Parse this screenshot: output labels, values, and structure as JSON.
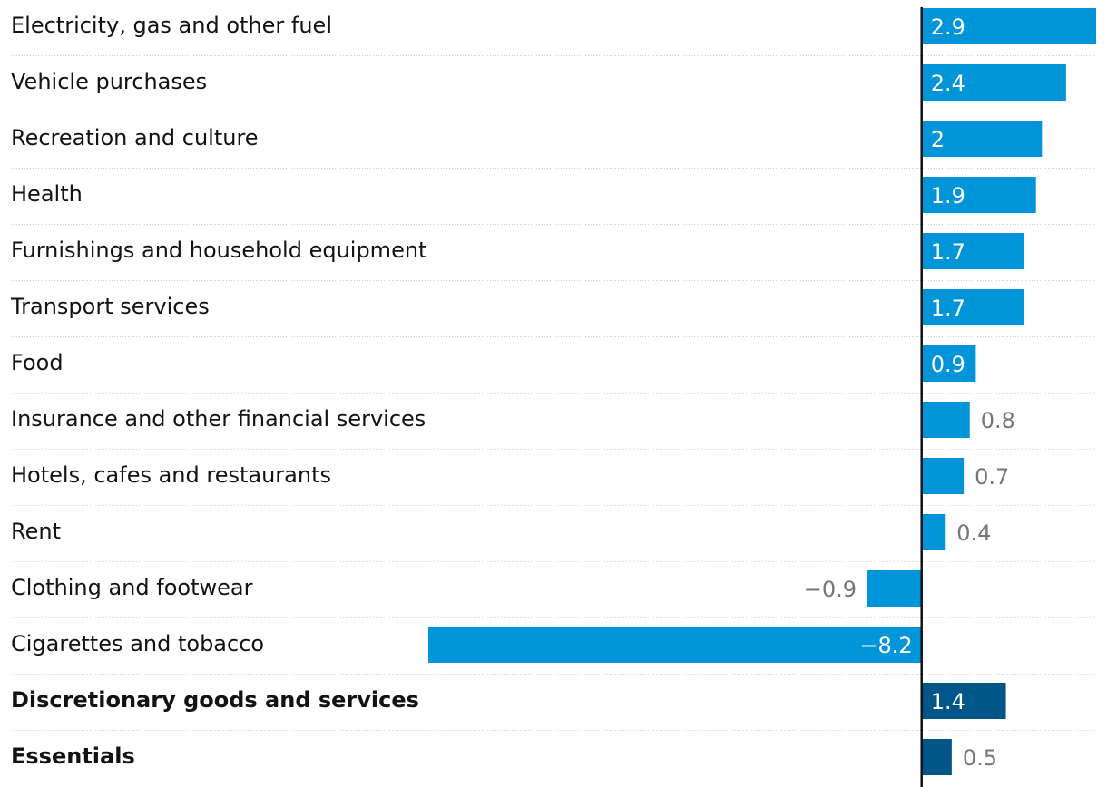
{
  "chart_data": {
    "type": "bar",
    "orientation": "horizontal",
    "categories": [
      "Electricity, gas and other fuel",
      "Vehicle purchases",
      "Recreation and culture",
      "Health",
      "Furnishings and household equipment",
      "Transport services",
      "Food",
      "Insurance and other financial services",
      "Hotels, cafes and restaurants",
      "Rent",
      "Clothing and footwear",
      "Cigarettes and tobacco",
      "Discretionary goods and services",
      "Essentials"
    ],
    "values": [
      2.9,
      2.4,
      2,
      1.9,
      1.7,
      1.7,
      0.9,
      0.8,
      0.7,
      0.4,
      -0.9,
      -8.2,
      1.4,
      0.5
    ],
    "value_labels": [
      "2.9",
      "2.4",
      "2",
      "1.9",
      "1.7",
      "1.7",
      "0.9",
      "0.8",
      "0.7",
      "0.4",
      "−0.9",
      "−8.2",
      "1.4",
      "0.5"
    ],
    "highlight": [
      false,
      false,
      false,
      false,
      false,
      false,
      false,
      false,
      false,
      false,
      false,
      false,
      true,
      true
    ],
    "xlim": [
      -8.2,
      2.9
    ],
    "title": "",
    "xlabel": "",
    "ylabel": "",
    "grid": true,
    "colors": {
      "bar": "#0094d9",
      "highlight": "#005689",
      "label_inside": "#ffffff",
      "label_outside": "#767676"
    }
  }
}
